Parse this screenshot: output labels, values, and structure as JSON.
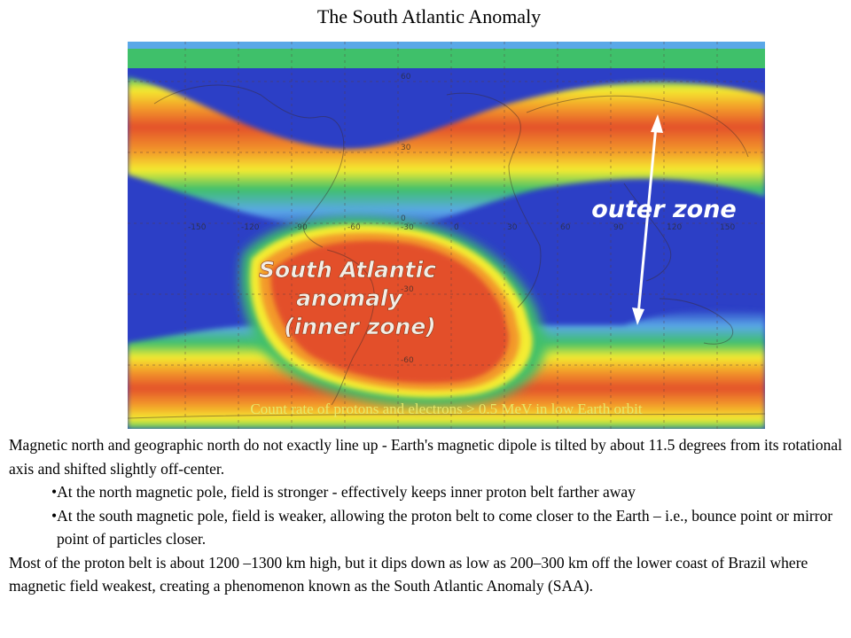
{
  "slide": {
    "title": "The South Atlantic Anomaly"
  },
  "map": {
    "caption": "Count rate of protons and electrons > 0.5 MeV in low Earth orbit",
    "saa_label_lines": [
      "South Atlantic",
      "anomaly",
      "(inner zone)"
    ],
    "outer_label": "outer zone",
    "lon_labels": [
      "-150",
      "-120",
      "-90",
      "-60",
      "-30",
      "0",
      "30",
      "60",
      "90",
      "120",
      "150"
    ],
    "lat_labels": [
      "60",
      "30",
      "0",
      "-30",
      "-60"
    ],
    "colors": {
      "deep_blue": "#2c3fc6",
      "light_blue": "#5aa8e8",
      "green": "#3fc06a",
      "yellow": "#f4ec30",
      "orange": "#f39a2a",
      "red": "#e3502a"
    }
  },
  "body": {
    "para1": "Magnetic north and geographic north do not exactly line up - Earth's magnetic dipole is tilted by about 11.5 degrees from its rotational axis and shifted slightly off-center.",
    "bullets": [
      "•At the north magnetic pole, field is stronger - effectively keeps inner proton belt farther away",
      "•At the south magnetic pole, field is weaker, allowing the proton belt to come closer to the Earth – i.e., bounce point or mirror point of particles closer."
    ],
    "para2": "Most of the proton belt is about 1200 –1300 km high, but it dips down as low as 200–300 km off the lower coast of Brazil where magnetic field weakest, creating a phenomenon known as the South Atlantic Anomaly (SAA)."
  }
}
